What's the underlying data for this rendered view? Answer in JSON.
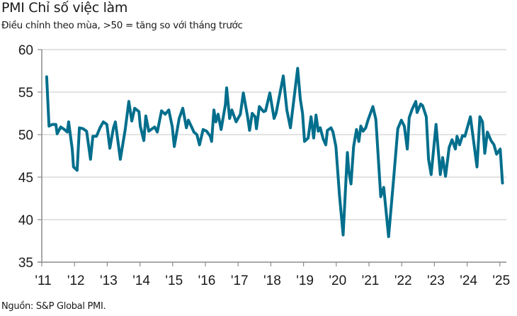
{
  "title": "PMI Chỉ số việc làm",
  "subtitle": "Điều chỉnh theo mùa, >50 = tăng so với tháng trước",
  "source": "Nguồn: S&P Global PMI.",
  "chart_data": {
    "type": "line",
    "title": "PMI Chỉ số việc làm",
    "subtitle": "Điều chỉnh theo mùa, >50 = tăng so với tháng trước",
    "xlabel": "",
    "ylabel": "",
    "xlim": [
      2011,
      2025.25
    ],
    "ylim": [
      35,
      60
    ],
    "yticks": [
      35,
      40,
      45,
      50,
      55,
      60
    ],
    "ytick_labels": [
      "35",
      "40",
      "45",
      "50",
      "55",
      "60"
    ],
    "xticks": [
      2011,
      2012,
      2013,
      2014,
      2015,
      2016,
      2017,
      2018,
      2019,
      2020,
      2021,
      2022,
      2023,
      2024,
      2025
    ],
    "xtick_labels": [
      "'11",
      "'12",
      "'13",
      "'14",
      "'15",
      "'16",
      "'17",
      "'18",
      "'19",
      "'20",
      "'21",
      "'22",
      "'23",
      "'24",
      "'25"
    ],
    "grid": "horizontal",
    "legend": "none",
    "line_color": "#006e8c",
    "series": [
      {
        "name": "PMI Chỉ số việc làm",
        "x": [
          2011.15,
          2011.22,
          2011.32,
          2011.43,
          2011.47,
          2011.58,
          2011.69,
          2011.78,
          2011.82,
          2011.93,
          2011.97,
          2012.08,
          2012.15,
          2012.26,
          2012.37,
          2012.49,
          2012.56,
          2012.67,
          2012.78,
          2012.88,
          2012.99,
          2013.08,
          2013.19,
          2013.25,
          2013.4,
          2013.55,
          2013.66,
          2013.75,
          2013.84,
          2013.97,
          2014.01,
          2014.12,
          2014.18,
          2014.27,
          2014.34,
          2014.45,
          2014.53,
          2014.66,
          2014.77,
          2014.88,
          2014.99,
          2015.05,
          2015.2,
          2015.31,
          2015.42,
          2015.48,
          2015.59,
          2015.65,
          2015.74,
          2015.82,
          2015.93,
          2016.04,
          2016.15,
          2016.19,
          2016.26,
          2016.32,
          2016.39,
          2016.48,
          2016.61,
          2016.65,
          2016.74,
          2016.81,
          2016.94,
          2017.07,
          2017.16,
          2017.29,
          2017.35,
          2017.43,
          2017.52,
          2017.56,
          2017.65,
          2017.78,
          2017.84,
          2017.97,
          2018.1,
          2018.16,
          2018.38,
          2018.49,
          2018.6,
          2018.82,
          2018.9,
          2018.97,
          2019.03,
          2019.14,
          2019.23,
          2019.31,
          2019.38,
          2019.45,
          2019.51,
          2019.6,
          2019.68,
          2019.73,
          2019.84,
          2019.9,
          2019.99,
          2020.1,
          2020.21,
          2020.34,
          2020.38,
          2020.45,
          2020.53,
          2020.62,
          2020.69,
          2020.75,
          2020.82,
          2020.9,
          2020.97,
          2021.12,
          2021.21,
          2021.36,
          2021.45,
          2021.6,
          2021.75,
          2021.88,
          2021.99,
          2022.08,
          2022.17,
          2022.23,
          2022.32,
          2022.43,
          2022.47,
          2022.58,
          2022.64,
          2022.75,
          2022.82,
          2022.9,
          2023.05,
          2023.18,
          2023.25,
          2023.34,
          2023.45,
          2023.54,
          2023.64,
          2023.69,
          2023.77,
          2023.86,
          2023.93,
          2024.1,
          2024.3,
          2024.39,
          2024.47,
          2024.54,
          2024.62,
          2024.73,
          2024.82,
          2024.9,
          2025.01,
          2025.08
        ],
        "values": [
          56.8,
          51.0,
          51.2,
          51.2,
          50.1,
          50.9,
          50.6,
          50.3,
          51.5,
          48.3,
          46.2,
          45.8,
          50.8,
          50.7,
          50.4,
          47.1,
          49.8,
          49.8,
          50.8,
          51.5,
          51.2,
          48.4,
          50.8,
          51.5,
          47.1,
          50.6,
          53.9,
          51.6,
          53.1,
          52.7,
          51.0,
          49.3,
          52.2,
          50.4,
          50.6,
          50.9,
          50.3,
          52.8,
          52.4,
          52.9,
          50.9,
          48.6,
          51.9,
          53.1,
          50.8,
          51.7,
          50.8,
          50.3,
          50.0,
          48.8,
          50.6,
          50.4,
          49.8,
          49.2,
          52.9,
          51.5,
          52.4,
          50.6,
          53.5,
          55.5,
          51.9,
          52.9,
          51.5,
          52.4,
          54.9,
          52.1,
          50.5,
          52.5,
          52.1,
          50.7,
          53.3,
          52.7,
          52.8,
          54.9,
          51.9,
          52.5,
          56.9,
          52.9,
          50.8,
          57.8,
          54.2,
          52.5,
          49.2,
          49.6,
          52.1,
          49.6,
          52.3,
          50.4,
          50.8,
          49.5,
          48.8,
          50.5,
          50.8,
          50.3,
          48.6,
          42.8,
          38.2,
          47.9,
          45.8,
          44.2,
          48.6,
          50.6,
          49.2,
          51.0,
          50.4,
          50.8,
          51.7,
          53.3,
          51.8,
          42.7,
          43.8,
          38.0,
          44.7,
          50.7,
          51.7,
          51.0,
          48.3,
          52.0,
          53.0,
          53.9,
          52.6,
          53.6,
          53.4,
          52.1,
          47.1,
          45.3,
          51.2,
          45.3,
          47.3,
          45.1,
          48.5,
          49.4,
          48.3,
          49.8,
          48.8,
          49.9,
          49.8,
          52.1,
          46.2,
          52.1,
          51.5,
          47.8,
          50.3,
          49.3,
          48.8,
          47.7,
          48.3,
          44.3
        ]
      }
    ]
  }
}
